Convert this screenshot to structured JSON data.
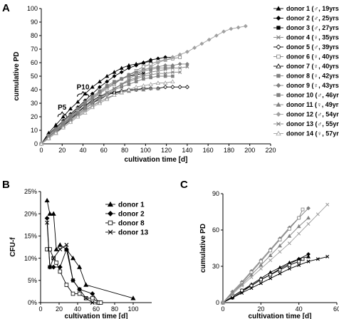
{
  "panels": {
    "A": "A",
    "B": "B",
    "C": "C"
  },
  "chart_data": [
    {
      "panel": "A",
      "type": "line",
      "xlabel": "cultivation time [d]",
      "ylabel": "cumulative PD",
      "xlim": [
        0,
        220
      ],
      "ylim": [
        0,
        100
      ],
      "xticks": [
        0,
        20,
        40,
        60,
        80,
        100,
        120,
        140,
        160,
        180,
        200,
        220
      ],
      "yticks": [
        0,
        10,
        20,
        30,
        40,
        50,
        60,
        70,
        80,
        90,
        100
      ],
      "legend_position": "right",
      "annotations": [
        {
          "text": "P5",
          "x": 20,
          "y": 22
        },
        {
          "text": "P10",
          "x": 40,
          "y": 37
        }
      ],
      "series": [
        {
          "name": "donor 1 (♂, 19yrs)",
          "color": "#000000",
          "marker": "triangle",
          "x": [
            0,
            7,
            14,
            21,
            28,
            35,
            42,
            49,
            56,
            63,
            70,
            77,
            84,
            91,
            98,
            105
          ],
          "y": [
            0,
            8,
            14,
            20,
            26,
            31,
            37,
            42,
            46,
            50,
            53,
            56,
            58,
            59,
            60,
            61
          ]
        },
        {
          "name": "donor 2 (♂, 25yrs)",
          "color": "#000000",
          "marker": "diamond",
          "x": [
            0,
            7,
            14,
            21,
            28,
            35,
            42,
            49,
            56,
            63,
            70,
            77,
            84,
            91,
            98,
            105,
            112,
            119,
            126
          ],
          "y": [
            0,
            7,
            12,
            17,
            22,
            27,
            32,
            37,
            42,
            46,
            50,
            53,
            56,
            58,
            60,
            62,
            63,
            64,
            64
          ]
        },
        {
          "name": "donor 3 (♂, 27yrs)",
          "color": "#000000",
          "marker": "square",
          "x": [
            0,
            7,
            14,
            21,
            28,
            35,
            42,
            49,
            56,
            63,
            70,
            77,
            84,
            91,
            98
          ],
          "y": [
            0,
            6,
            11,
            16,
            21,
            25,
            30,
            34,
            38,
            42,
            45,
            48,
            50,
            51,
            52
          ]
        },
        {
          "name": "donor 4 (♀, 35yrs)",
          "color": "#808080",
          "marker": "x",
          "x": [
            0,
            7,
            14,
            21,
            28,
            35,
            42,
            49,
            56,
            63,
            70,
            77,
            84,
            91,
            98,
            105,
            112,
            119,
            126,
            133
          ],
          "y": [
            0,
            5,
            10,
            15,
            20,
            24,
            28,
            32,
            35,
            38,
            41,
            44,
            46,
            48,
            50,
            51,
            52,
            52,
            53,
            53
          ]
        },
        {
          "name": "donor 5 (♂, 39yrs)",
          "color": "#000000",
          "marker": "diamond-open",
          "x": [
            0,
            7,
            14,
            21,
            28,
            35,
            42,
            49,
            56,
            63,
            70,
            77,
            84,
            91,
            98,
            105,
            112,
            119,
            126,
            133,
            140
          ],
          "y": [
            0,
            5,
            9,
            14,
            18,
            22,
            26,
            30,
            33,
            36,
            38,
            39,
            40,
            40,
            41,
            41,
            41,
            42,
            42,
            42,
            42
          ]
        },
        {
          "name": "donor 6 (♀, 40yrs)",
          "color": "#808080",
          "marker": "square-open",
          "x": [
            0,
            7,
            14,
            21,
            28,
            35,
            42,
            49,
            56,
            63,
            70,
            77,
            84,
            91,
            98,
            105,
            112,
            119,
            126,
            133
          ],
          "y": [
            0,
            5,
            9,
            14,
            19,
            24,
            28,
            33,
            37,
            41,
            44,
            48,
            51,
            54,
            57,
            59,
            61,
            62,
            63,
            64
          ]
        },
        {
          "name": "donor 7 (♀, 40yrs)",
          "color": "#000000",
          "marker": "triangle-open",
          "x": [
            0,
            7,
            14,
            21,
            28,
            35,
            42,
            49,
            56,
            63,
            70,
            77
          ],
          "y": [
            0,
            4,
            8,
            13,
            18,
            23,
            28,
            32,
            35,
            37,
            38,
            38
          ]
        },
        {
          "name": "donor 8 (♀, 42yrs)",
          "color": "#808080",
          "marker": "square",
          "x": [
            0,
            7,
            14,
            21,
            28,
            35,
            42,
            49,
            56,
            63,
            70,
            77,
            84,
            91,
            98,
            105,
            112,
            119,
            126
          ],
          "y": [
            0,
            6,
            11,
            16,
            21,
            26,
            31,
            35,
            39,
            43,
            46,
            48,
            50,
            52,
            54,
            55,
            56,
            56,
            57
          ]
        },
        {
          "name": "donor 9 (♀, 43yrs)",
          "color": "#808080",
          "marker": "diamond",
          "x": [
            0,
            7,
            14,
            21,
            28,
            35,
            42,
            49,
            56,
            63,
            70,
            77,
            84,
            91,
            98,
            105,
            112,
            119,
            126,
            133,
            140
          ],
          "y": [
            0,
            6,
            11,
            16,
            21,
            26,
            30,
            34,
            38,
            42,
            45,
            48,
            51,
            53,
            55,
            56,
            57,
            58,
            58,
            59,
            59
          ]
        },
        {
          "name": "donor 10 (♂, 46yrs)",
          "color": "#808080",
          "marker": "square",
          "x": [
            0,
            7,
            14,
            21,
            28,
            35,
            42,
            49,
            56,
            63,
            70,
            77,
            84,
            91,
            98,
            105,
            112,
            119,
            126
          ],
          "y": [
            0,
            5,
            10,
            15,
            19,
            23,
            27,
            31,
            34,
            37,
            40,
            42,
            44,
            46,
            48,
            49,
            50,
            50,
            50
          ]
        },
        {
          "name": "donor 11 (♀, 49yrs)",
          "color": "#808080",
          "marker": "triangle",
          "x": [
            0,
            7,
            14,
            21,
            28,
            35,
            42,
            49,
            56,
            63,
            70,
            77,
            84,
            91,
            98,
            105,
            112
          ],
          "y": [
            0,
            5,
            9,
            13,
            17,
            21,
            25,
            28,
            31,
            34,
            36,
            38,
            39,
            40,
            40,
            41,
            41
          ]
        },
        {
          "name": "donor 12 (♂, 54yrs)",
          "color": "#A0A0A0",
          "marker": "diamond",
          "x": [
            0,
            7,
            14,
            21,
            28,
            35,
            42,
            49,
            56,
            63,
            70,
            77,
            84,
            91,
            98,
            105,
            112,
            119,
            126,
            133,
            140,
            147,
            154,
            161,
            168,
            175,
            182,
            189,
            196
          ],
          "y": [
            0,
            4,
            8,
            12,
            16,
            20,
            24,
            28,
            32,
            36,
            40,
            44,
            48,
            51,
            54,
            57,
            60,
            62,
            64,
            66,
            68,
            71,
            74,
            77,
            80,
            83,
            85,
            86,
            87
          ]
        },
        {
          "name": "donor 13 (♂, 55yrs)",
          "color": "#808080",
          "marker": "x",
          "x": [
            0,
            7,
            14,
            21,
            28,
            35,
            42,
            49,
            56,
            63,
            70,
            77,
            84,
            91,
            98,
            105,
            112,
            119,
            126,
            133,
            140
          ],
          "y": [
            0,
            5,
            10,
            14,
            18,
            22,
            26,
            30,
            34,
            38,
            41,
            44,
            47,
            49,
            51,
            53,
            54,
            55,
            56,
            56,
            57
          ]
        },
        {
          "name": "donor 14 (♀, 57yrs)",
          "color": "#A0A0A0",
          "marker": "triangle-open",
          "x": [
            0,
            7,
            14,
            21,
            28,
            35,
            42,
            49,
            56,
            63,
            70,
            77,
            84,
            91,
            98,
            105,
            112,
            119,
            126
          ],
          "y": [
            0,
            4,
            8,
            12,
            16,
            20,
            23,
            27,
            30,
            33,
            36,
            38,
            40,
            42,
            43,
            44,
            45,
            45,
            46
          ]
        }
      ]
    },
    {
      "panel": "B",
      "type": "line",
      "xlabel": "cultivation time [d]",
      "ylabel": "CFU-f",
      "xlim": [
        0,
        120
      ],
      "ylim": [
        0,
        25
      ],
      "xticks": [
        0,
        20,
        40,
        60,
        80,
        100
      ],
      "yticks": [
        0,
        5,
        10,
        15,
        20,
        25
      ],
      "ytick_labels": [
        "0%",
        "5%",
        "10%",
        "15%",
        "20%",
        "25%"
      ],
      "legend_position": "right",
      "series": [
        {
          "name": "donor 1",
          "color": "#000000",
          "marker": "triangle",
          "x": [
            7,
            10,
            14,
            17,
            21,
            28,
            35,
            42,
            49,
            100
          ],
          "y": [
            23,
            20,
            20,
            12,
            13,
            12,
            10,
            8,
            4,
            1
          ]
        },
        {
          "name": "donor 2",
          "color": "#000000",
          "marker": "diamond",
          "x": [
            7,
            10,
            14,
            21,
            28,
            35,
            42,
            56,
            63
          ],
          "y": [
            19,
            8,
            8,
            8,
            12,
            5,
            3,
            2,
            0
          ]
        },
        {
          "name": "donor 8",
          "color": "#000000",
          "marker": "square-open",
          "x": [
            7,
            10,
            14,
            17,
            21,
            28,
            35,
            42,
            49,
            56,
            63,
            65
          ],
          "y": [
            12,
            12,
            10,
            9,
            7,
            4,
            2,
            2,
            1,
            1,
            0,
            0
          ]
        },
        {
          "name": "donor 13",
          "color": "#000000",
          "marker": "x",
          "x": [
            7,
            10,
            14,
            21,
            28,
            35,
            42,
            49,
            56
          ],
          "y": [
            18,
            8,
            10,
            12,
            13,
            5,
            3,
            1,
            0
          ]
        }
      ]
    },
    {
      "panel": "C",
      "type": "line",
      "xlabel": "cultivation time [d]",
      "ylabel": "cumulative PD",
      "xlim": [
        0,
        60
      ],
      "ylim": [
        0,
        90
      ],
      "xticks": [
        0,
        20,
        40,
        60
      ],
      "yticks": [
        0,
        30,
        60,
        90
      ],
      "series": [
        {
          "color": "#000000",
          "marker": "triangle",
          "x": [
            0,
            5,
            10,
            15,
            20,
            25,
            30,
            35,
            40,
            45
          ],
          "y": [
            0,
            5,
            10,
            15,
            20,
            25,
            29,
            33,
            36,
            38
          ]
        },
        {
          "color": "#000000",
          "marker": "diamond",
          "x": [
            0,
            5,
            10,
            15,
            20,
            25,
            30,
            35,
            40,
            45
          ],
          "y": [
            0,
            4,
            9,
            14,
            19,
            23,
            28,
            32,
            36,
            40
          ]
        },
        {
          "color": "#000000",
          "marker": "square-open",
          "x": [
            0,
            5,
            10,
            15,
            20,
            25,
            30,
            35,
            40,
            42
          ],
          "y": [
            0,
            5,
            10,
            14,
            19,
            23,
            27,
            31,
            34,
            36
          ]
        },
        {
          "color": "#000000",
          "marker": "x",
          "x": [
            0,
            5,
            10,
            15,
            20,
            25,
            30,
            35,
            40,
            45,
            50,
            55
          ],
          "y": [
            0,
            4,
            8,
            12,
            16,
            20,
            24,
            28,
            31,
            34,
            36,
            38
          ]
        },
        {
          "color": "#808080",
          "marker": "diamond",
          "x": [
            0,
            5,
            10,
            15,
            20,
            25,
            30,
            35,
            40,
            45
          ],
          "y": [
            0,
            9,
            17,
            26,
            35,
            44,
            53,
            62,
            70,
            78
          ]
        },
        {
          "color": "#808080",
          "marker": "square-open",
          "x": [
            0,
            5,
            10,
            15,
            20,
            25,
            30,
            35,
            40,
            42
          ],
          "y": [
            0,
            8,
            16,
            25,
            34,
            43,
            52,
            61,
            70,
            77
          ]
        },
        {
          "color": "#808080",
          "marker": "triangle",
          "x": [
            0,
            5,
            10,
            15,
            20,
            25,
            30,
            35,
            40,
            45
          ],
          "y": [
            0,
            8,
            15,
            23,
            31,
            39,
            47,
            55,
            63,
            70
          ]
        },
        {
          "color": "#A0A0A0",
          "marker": "x",
          "x": [
            0,
            5,
            10,
            15,
            20,
            25,
            30,
            35,
            40,
            45,
            50,
            55
          ],
          "y": [
            0,
            7,
            14,
            21,
            28,
            35,
            42,
            49,
            57,
            65,
            73,
            81
          ]
        }
      ]
    }
  ]
}
